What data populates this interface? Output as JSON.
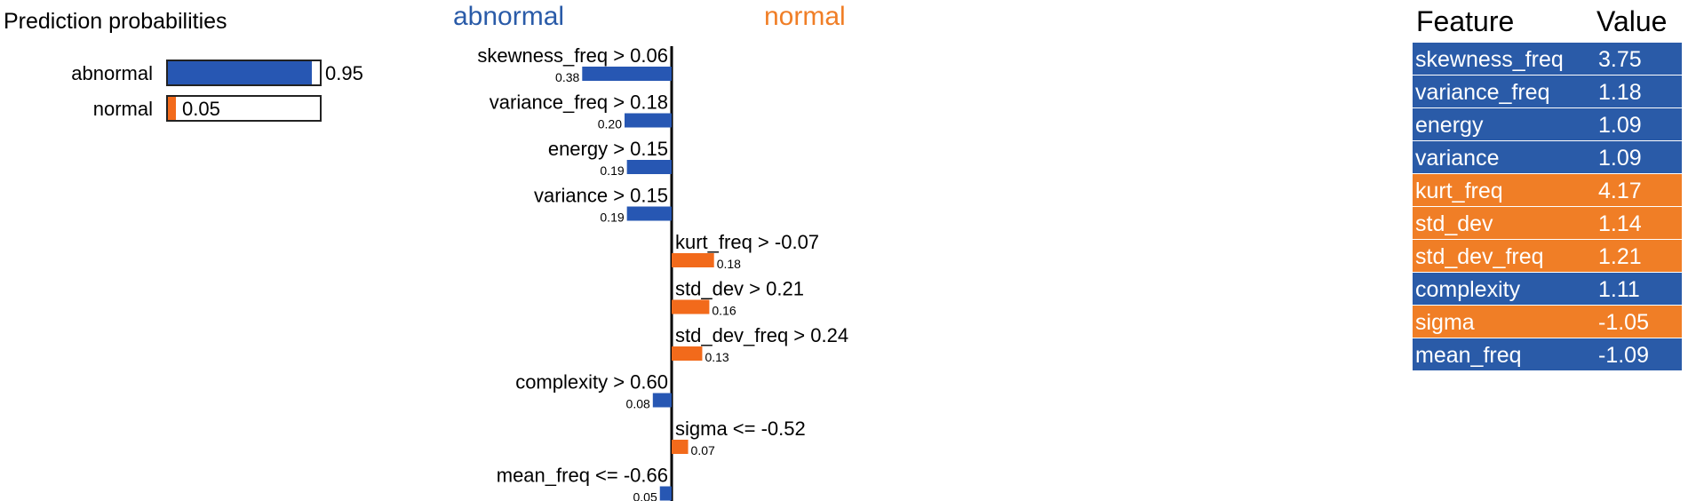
{
  "colors": {
    "abnormal": "#2757b3",
    "normal": "#f26a1b",
    "header_abnormal": "#2a5ba8",
    "header_normal": "#f07e26"
  },
  "prediction": {
    "title": "Prediction probabilities",
    "classes": [
      {
        "label": "abnormal",
        "value": 0.95,
        "value_text": "0.95",
        "color": "#2757b3"
      },
      {
        "label": "normal",
        "value": 0.05,
        "value_text": "0.05",
        "color": "#f26a1b"
      }
    ]
  },
  "chart_data": {
    "type": "bar",
    "orientation": "horizontal",
    "title": "",
    "class_headers": {
      "left": "abnormal",
      "right": "normal"
    },
    "features": [
      {
        "condition": "skewness_freq > 0.06",
        "weight": 0.38,
        "weight_text": "0.38",
        "class": "abnormal"
      },
      {
        "condition": "variance_freq > 0.18",
        "weight": 0.2,
        "weight_text": "0.20",
        "class": "abnormal"
      },
      {
        "condition": "energy > 0.15",
        "weight": 0.19,
        "weight_text": "0.19",
        "class": "abnormal"
      },
      {
        "condition": "variance > 0.15",
        "weight": 0.19,
        "weight_text": "0.19",
        "class": "abnormal"
      },
      {
        "condition": "kurt_freq > -0.07",
        "weight": 0.18,
        "weight_text": "0.18",
        "class": "normal"
      },
      {
        "condition": "std_dev > 0.21",
        "weight": 0.16,
        "weight_text": "0.16",
        "class": "normal"
      },
      {
        "condition": "std_dev_freq > 0.24",
        "weight": 0.13,
        "weight_text": "0.13",
        "class": "normal"
      },
      {
        "condition": "complexity > 0.60",
        "weight": 0.08,
        "weight_text": "0.08",
        "class": "abnormal"
      },
      {
        "condition": "sigma <= -0.52",
        "weight": 0.07,
        "weight_text": "0.07",
        "class": "normal"
      },
      {
        "condition": "mean_freq <= -0.66",
        "weight": 0.05,
        "weight_text": "0.05",
        "class": "abnormal"
      }
    ]
  },
  "table": {
    "headers": {
      "feature": "Feature",
      "value": "Value"
    },
    "rows": [
      {
        "feature": "skewness_freq",
        "value": "3.75",
        "class": "abnormal"
      },
      {
        "feature": "variance_freq",
        "value": "1.18",
        "class": "abnormal"
      },
      {
        "feature": "energy",
        "value": "1.09",
        "class": "abnormal"
      },
      {
        "feature": "variance",
        "value": "1.09",
        "class": "abnormal"
      },
      {
        "feature": "kurt_freq",
        "value": "4.17",
        "class": "normal"
      },
      {
        "feature": "std_dev",
        "value": "1.14",
        "class": "normal"
      },
      {
        "feature": "std_dev_freq",
        "value": "1.21",
        "class": "normal"
      },
      {
        "feature": "complexity",
        "value": "1.11",
        "class": "abnormal"
      },
      {
        "feature": "sigma",
        "value": "-1.05",
        "class": "normal"
      },
      {
        "feature": "mean_freq",
        "value": "-1.09",
        "class": "abnormal"
      }
    ]
  }
}
